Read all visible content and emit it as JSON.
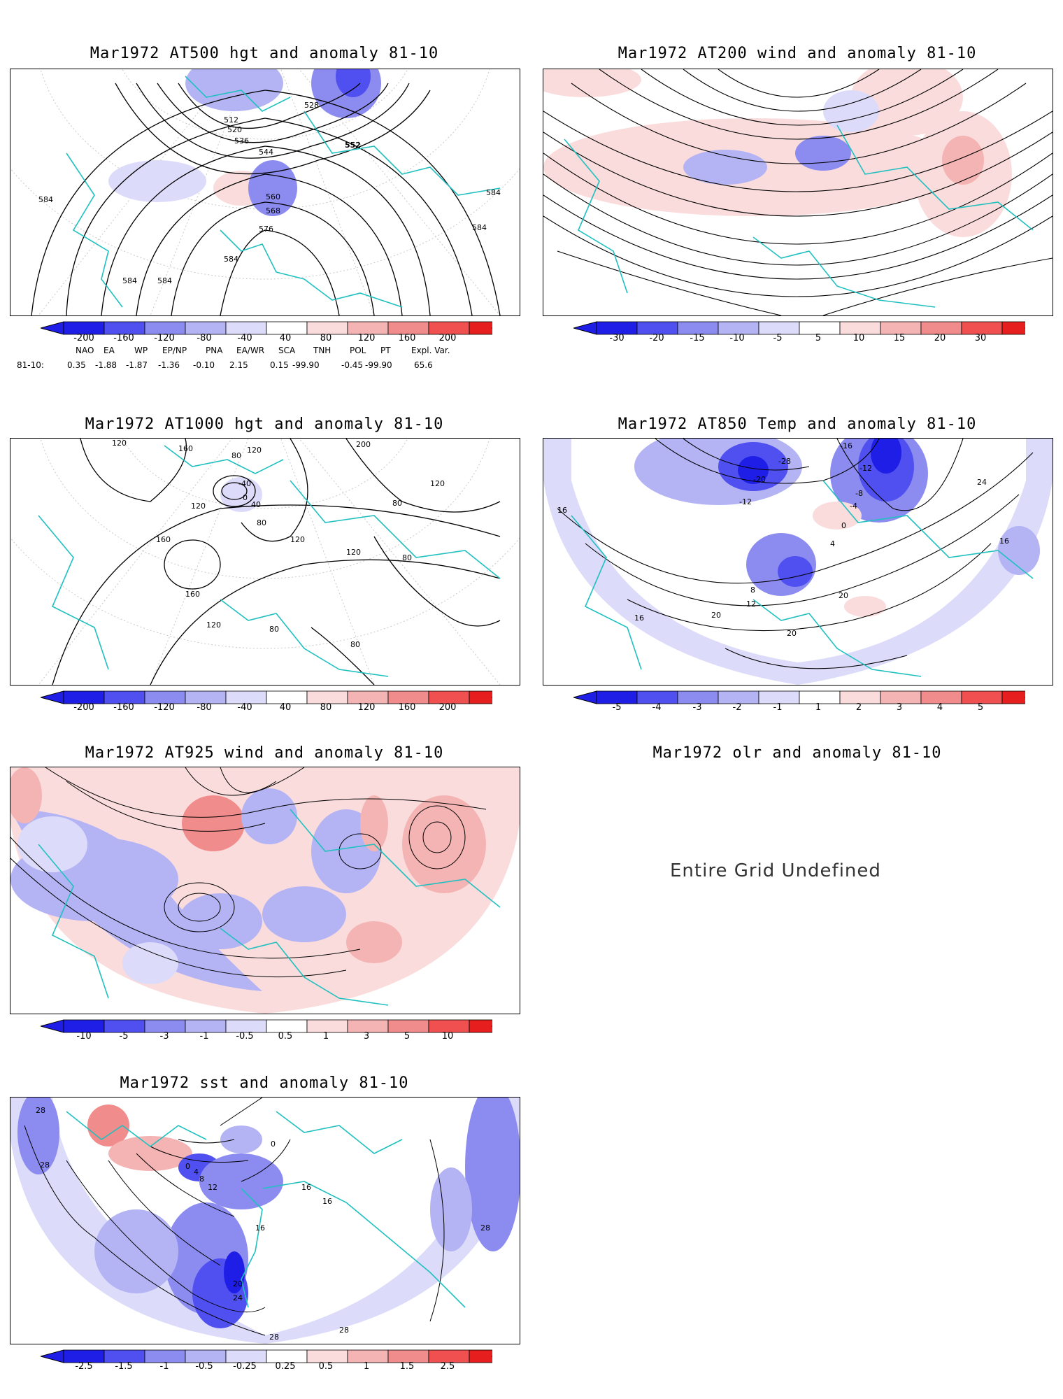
{
  "panels": {
    "p500": {
      "title": "Mar1972 AT500 hgt and anomaly 81-10",
      "contour_labels": [
        "584",
        "584",
        "584",
        "584",
        "584",
        "584",
        "576",
        "568",
        "560",
        "552",
        "544",
        "536",
        "528",
        "520",
        "512"
      ]
    },
    "p200": {
      "title": "Mar1972 AT200 wind and anomaly 81-10"
    },
    "p1000": {
      "title": "Mar1972 AT1000 hgt and anomaly 81-10",
      "contour_labels": [
        "120",
        "160",
        "80",
        "120",
        "200",
        "120",
        "-40",
        "0",
        "40",
        "80",
        "120",
        "160",
        "120",
        "80",
        "80",
        "120",
        "160",
        "120",
        "80",
        "80"
      ]
    },
    "p850": {
      "title": "Mar1972 AT850 Temp and anomaly 81-10",
      "contour_labels": [
        "-16",
        "-28",
        "-20",
        "-12",
        "-12",
        "-8",
        "-4",
        "0",
        "4",
        "8",
        "12",
        "16",
        "16",
        "16",
        "20",
        "20",
        "24",
        "20"
      ]
    },
    "p925": {
      "title": "Mar1972 AT925 wind and anomaly 81-10"
    },
    "polr": {
      "title": "Mar1972 olr and anomaly 81-10",
      "message": "Entire Grid Undefined"
    },
    "psst": {
      "title": "Mar1972 sst and anomaly 81-10",
      "contour_labels": [
        "28",
        "28",
        "0",
        "0",
        "4",
        "8",
        "12",
        "16",
        "20",
        "24",
        "28",
        "28",
        "28",
        "16",
        "16"
      ]
    }
  },
  "colorbars": {
    "hgt": [
      "-200",
      "-160",
      "-120",
      "-80",
      "-40",
      "40",
      "80",
      "120",
      "160",
      "200"
    ],
    "wind": [
      "-30",
      "-20",
      "-15",
      "-10",
      "-5",
      "5",
      "10",
      "15",
      "20",
      "30"
    ],
    "temp": [
      "-5",
      "-4",
      "-3",
      "-2",
      "-1",
      "1",
      "2",
      "3",
      "4",
      "5"
    ],
    "w925": [
      "-10",
      "-5",
      "-3",
      "-1",
      "-0.5",
      "0.5",
      "1",
      "3",
      "5",
      "10"
    ],
    "sst": [
      "-2.5",
      "-1.5",
      "-1",
      "-0.5",
      "-0.25",
      "0.25",
      "0.5",
      "1",
      "1.5",
      "2.5"
    ]
  },
  "colors": {
    "blue": [
      "#1e1ee6",
      "#5050f0",
      "#8c8cf0",
      "#b4b4f5",
      "#dcdcfa"
    ],
    "red": [
      "#fadcdc",
      "#f5b4b4",
      "#f08c8c",
      "#f05050",
      "#e61e1e"
    ],
    "coast": "#20c0c0"
  },
  "indices": {
    "names": [
      "NAO",
      "EA",
      "WP",
      "EP/NP",
      "PNA",
      "EA/WR",
      "SCA",
      "TNH",
      "POL",
      "PT",
      "Expl. Var."
    ],
    "row_label": "81-10:",
    "values": [
      "0.35",
      "-1.88",
      "-1.87",
      "-1.36",
      "-0.10",
      "2.15",
      "0.15",
      "-99.90",
      "-0.45",
      "-99.90",
      "65.6"
    ]
  }
}
